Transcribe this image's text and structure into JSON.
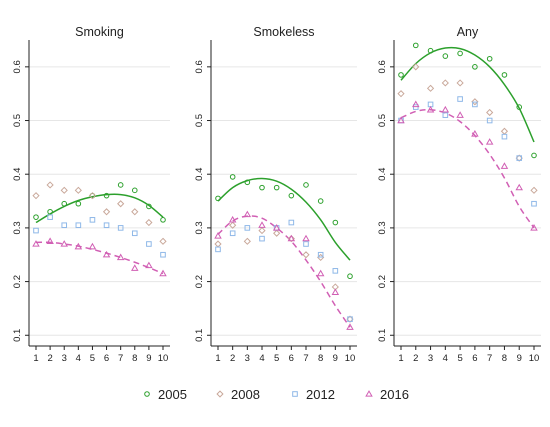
{
  "chart_data": [
    {
      "type": "scatter",
      "title": "Smoking",
      "x": [
        1,
        2,
        3,
        4,
        5,
        6,
        7,
        8,
        9,
        10
      ],
      "ylim": [
        0.08,
        0.65
      ],
      "yticks": [
        "0.1",
        "0.2",
        "0.3",
        "0.4",
        "0.5",
        "0.6"
      ],
      "xticks": [
        "1",
        "2",
        "3",
        "4",
        "5",
        "6",
        "7",
        "8",
        "9",
        "10"
      ],
      "series": [
        {
          "name": "2005",
          "values": [
            0.32,
            0.33,
            0.345,
            0.345,
            0.36,
            0.36,
            0.38,
            0.37,
            0.34,
            0.315
          ],
          "fit": [
            0.31,
            0.326,
            0.34,
            0.351,
            0.358,
            0.362,
            0.362,
            0.356,
            0.342,
            0.32
          ]
        },
        {
          "name": "2008",
          "values": [
            0.36,
            0.38,
            0.37,
            0.37,
            0.36,
            0.33,
            0.345,
            0.33,
            0.31,
            0.275
          ],
          "fit": null
        },
        {
          "name": "2012",
          "values": [
            0.295,
            0.32,
            0.305,
            0.305,
            0.315,
            0.305,
            0.3,
            0.29,
            0.27,
            0.25
          ],
          "fit": null
        },
        {
          "name": "2016",
          "values": [
            0.27,
            0.275,
            0.27,
            0.265,
            0.265,
            0.25,
            0.245,
            0.225,
            0.23,
            0.215
          ],
          "fit": [
            0.273,
            0.273,
            0.27,
            0.266,
            0.26,
            0.253,
            0.245,
            0.236,
            0.226,
            0.215
          ]
        }
      ]
    },
    {
      "type": "scatter",
      "title": "Smokeless",
      "x": [
        1,
        2,
        3,
        4,
        5,
        6,
        7,
        8,
        9,
        10
      ],
      "ylim": [
        0.08,
        0.65
      ],
      "yticks": [
        "0.1",
        "0.2",
        "0.3",
        "0.4",
        "0.5",
        "0.6"
      ],
      "xticks": [
        "1",
        "2",
        "3",
        "4",
        "5",
        "6",
        "7",
        "8",
        "9",
        "10"
      ],
      "series": [
        {
          "name": "2005",
          "values": [
            0.355,
            0.395,
            0.385,
            0.375,
            0.375,
            0.36,
            0.38,
            0.35,
            0.31,
            0.21
          ],
          "fit": [
            0.35,
            0.375,
            0.388,
            0.392,
            0.387,
            0.372,
            0.348,
            0.315,
            0.273,
            0.24
          ]
        },
        {
          "name": "2008",
          "values": [
            0.27,
            0.305,
            0.275,
            0.295,
            0.29,
            0.28,
            0.25,
            0.245,
            0.19,
            0.13
          ],
          "fit": null
        },
        {
          "name": "2012",
          "values": [
            0.26,
            0.29,
            0.3,
            0.28,
            0.3,
            0.31,
            0.27,
            0.25,
            0.22,
            0.13
          ],
          "fit": null
        },
        {
          "name": "2016",
          "values": [
            0.285,
            0.315,
            0.325,
            0.305,
            0.3,
            0.28,
            0.28,
            0.215,
            0.18,
            0.115
          ],
          "fit": [
            0.288,
            0.313,
            0.322,
            0.318,
            0.3,
            0.275,
            0.24,
            0.2,
            0.155,
            0.115
          ]
        }
      ]
    },
    {
      "type": "scatter",
      "title": "Any",
      "x": [
        1,
        2,
        3,
        4,
        5,
        6,
        7,
        8,
        9,
        10
      ],
      "ylim": [
        0.08,
        0.65
      ],
      "yticks": [
        "0.1",
        "0.2",
        "0.3",
        "0.4",
        "0.5",
        "0.6"
      ],
      "xticks": [
        "1",
        "2",
        "3",
        "4",
        "5",
        "6",
        "7",
        "8",
        "9",
        "10"
      ],
      "series": [
        {
          "name": "2005",
          "values": [
            0.585,
            0.64,
            0.63,
            0.62,
            0.625,
            0.6,
            0.615,
            0.585,
            0.525,
            0.435
          ],
          "fit": [
            0.575,
            0.606,
            0.626,
            0.635,
            0.634,
            0.622,
            0.6,
            0.567,
            0.523,
            0.46
          ]
        },
        {
          "name": "2008",
          "values": [
            0.55,
            0.6,
            0.56,
            0.57,
            0.57,
            0.535,
            0.515,
            0.48,
            0.43,
            0.37
          ],
          "fit": null
        },
        {
          "name": "2012",
          "values": [
            0.5,
            0.525,
            0.53,
            0.51,
            0.54,
            0.53,
            0.5,
            0.47,
            0.43,
            0.345
          ],
          "fit": null
        },
        {
          "name": "2016",
          "values": [
            0.5,
            0.53,
            0.52,
            0.52,
            0.51,
            0.475,
            0.46,
            0.415,
            0.375,
            0.3
          ],
          "fit": [
            0.505,
            0.517,
            0.52,
            0.514,
            0.498,
            0.472,
            0.437,
            0.393,
            0.34,
            0.3
          ]
        }
      ]
    }
  ],
  "legend": [
    {
      "label": "2005",
      "marker": "circle",
      "color": "#2ca02c"
    },
    {
      "label": "2008",
      "marker": "diamond",
      "color": "#c9a89a"
    },
    {
      "label": "2012",
      "marker": "square",
      "color": "#8fb8e8"
    },
    {
      "label": "2016",
      "marker": "triangle",
      "color": "#d15fb4"
    }
  ],
  "colors": {
    "2005": "#2ca02c",
    "2008": "#c9a89a",
    "2012": "#8fb8e8",
    "2016": "#d15fb4"
  }
}
